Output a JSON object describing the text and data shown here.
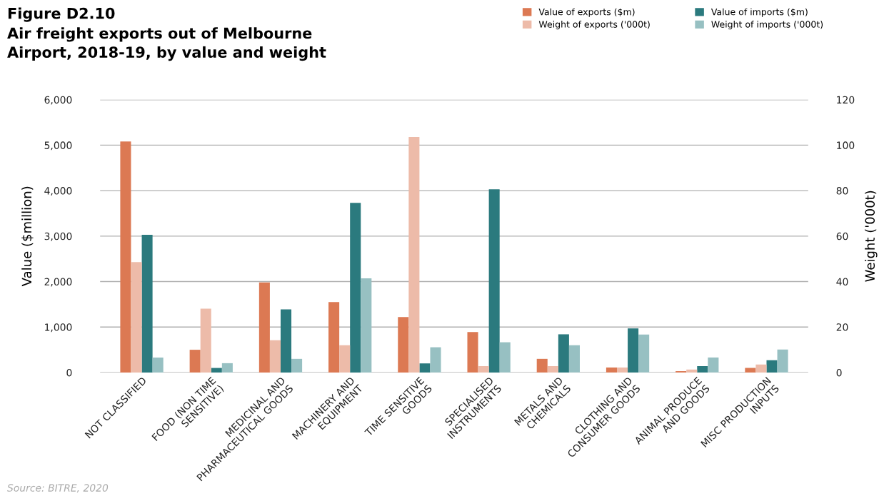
{
  "chart_data": {
    "type": "bar",
    "title": "Figure D2.10",
    "subtitle": "Air freight exports out of Melbourne\nAirport, 2018-19, by value and weight",
    "ylabel": "Value ($million)",
    "y2label": "Weight ('000t)",
    "categories": [
      "NOT CLASSIFIED",
      "FOOD (NON TIME\nSENSITIVE)",
      "MEDICINAL AND\nPHARMACEUTICAL GOODS",
      "MACHINERY AND\nEQUIPMENT",
      "TIME SENSITIVE\nGOODS",
      "SPECIALISED\nINSTRUMENTS",
      "METALS AND\nCHEMICALS",
      "CLOTHING AND\nCONSUMER GOODS",
      "ANIMAL PRODUCE\nAND GOODS",
      "MISC PRODUCTION\nINPUTS"
    ],
    "series": [
      {
        "name": "Value of exports ($m)",
        "color": "#dc7953",
        "values": [
          5080,
          500,
          1980,
          1550,
          1220,
          890,
          300,
          110,
          30,
          100
        ]
      },
      {
        "name": "Weight of exports ('000t)",
        "color": "#edbba9",
        "axis": "y2",
        "values": [
          48.6,
          28.1,
          14.2,
          12.0,
          103.6,
          2.8,
          2.8,
          2.2,
          1.3,
          3.5
        ]
      },
      {
        "name": "Value of imports ($m)",
        "color": "#2b7a7e",
        "values": [
          3030,
          100,
          1390,
          3730,
          200,
          4030,
          840,
          970,
          140,
          270
        ]
      },
      {
        "name": "Weight of imports ('000t)",
        "color": "#97c0c2",
        "axis": "y2",
        "values": [
          6.6,
          4.1,
          6.0,
          41.4,
          11.1,
          13.3,
          12.0,
          16.7,
          6.6,
          10.1
        ]
      }
    ],
    "ylim": [
      0,
      6000
    ],
    "yticks": [
      {
        "value": 0,
        "label": "0"
      },
      {
        "value": 1000,
        "label": "1,000"
      },
      {
        "value": 2000,
        "label": "2,000"
      },
      {
        "value": 3000,
        "label": "3,000"
      },
      {
        "value": 4000,
        "label": "4,000"
      },
      {
        "value": 5000,
        "label": "5,000"
      },
      {
        "value": 6000,
        "label": "6,000"
      }
    ],
    "y2lim": [
      0,
      120
    ],
    "y2ticks": [
      0,
      20,
      40,
      60,
      80,
      100,
      120
    ],
    "grid": "y",
    "legend": "top right",
    "annotations": [
      "Source: BITRE, 2020"
    ]
  }
}
